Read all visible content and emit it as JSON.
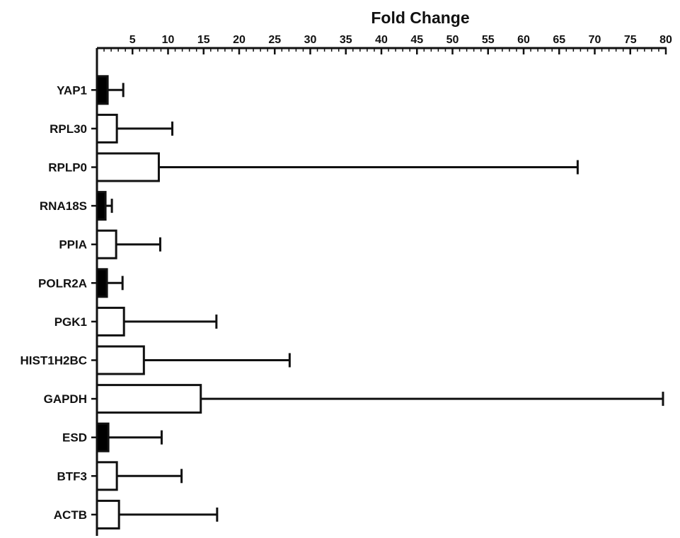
{
  "chart_data": {
    "type": "bar",
    "orientation": "horizontal",
    "xlabel": "Fold Change",
    "xlim": [
      0,
      80
    ],
    "xticks": [
      5,
      10,
      15,
      20,
      25,
      30,
      35,
      40,
      45,
      50,
      55,
      60,
      65,
      70,
      75,
      80
    ],
    "x_axis_position": "top",
    "grid": false,
    "legend": "none",
    "categories": [
      "YAP1",
      "RPL30",
      "RPLP0",
      "RNA18S",
      "PPIA",
      "POLR2A",
      "PGK1",
      "HIST1H2BC",
      "GAPDH",
      "ESD",
      "BTF3",
      "ACTB"
    ],
    "values": [
      1.5,
      2.8,
      8.7,
      1.2,
      2.7,
      1.4,
      3.8,
      6.6,
      14.6,
      1.6,
      2.8,
      3.1
    ],
    "error_upper": [
      3.7,
      10.6,
      67.6,
      2.1,
      8.9,
      3.6,
      16.8,
      27.1,
      79.6,
      9.1,
      11.9,
      16.9
    ],
    "fills": [
      "#000000",
      "#ffffff",
      "#ffffff",
      "#000000",
      "#ffffff",
      "#000000",
      "#ffffff",
      "#ffffff",
      "#ffffff",
      "#000000",
      "#ffffff",
      "#ffffff"
    ]
  }
}
